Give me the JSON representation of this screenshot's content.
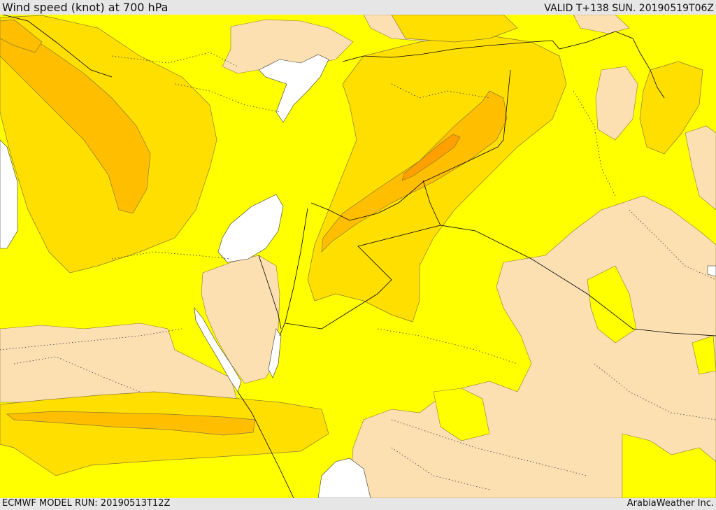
{
  "header": {
    "title": "Wind speed (knot) at 700 hPa",
    "valid": "VALID T+138 SUN. 20190519T06Z"
  },
  "footer": {
    "model_run": "ECMWF MODEL RUN: 20190513T12Z",
    "credit": "ArabiaWeather Inc."
  },
  "map": {
    "colors": {
      "calm": "#fde0b2",
      "light": "#ffff00",
      "moderate": "#ffdf00",
      "fresh": "#ffbf00",
      "strong": "#ff9f00",
      "water": "#ffffff",
      "contour": "#8a7a30",
      "border": "#000000"
    }
  }
}
